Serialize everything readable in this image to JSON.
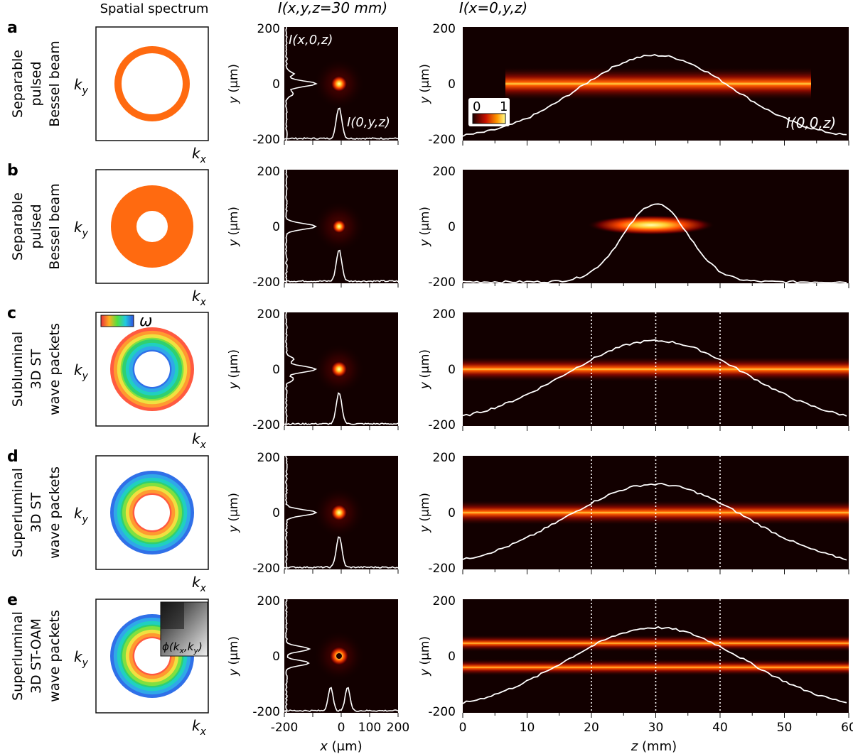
{
  "headers": {
    "spectrum": "Spatial spectrum",
    "transverse": "I(x,y,z=30 mm)",
    "axial": "I(x=0,y,z)"
  },
  "panels": [
    {
      "letter": "a",
      "label": [
        "Separable",
        "pulsed",
        "Bessel beam"
      ],
      "spectrum": "thin-ring-orange",
      "axial_profile": "bell"
    },
    {
      "letter": "b",
      "label": [
        "Separable",
        "pulsed",
        "Bessel beam"
      ],
      "spectrum": "thick-ring-orange",
      "axial_profile": "narrow"
    },
    {
      "letter": "c",
      "label": [
        "Subluminal",
        "3D ST",
        "wave packets"
      ],
      "spectrum": "rainbow-ring-red-outside",
      "axial_profile": "broad"
    },
    {
      "letter": "d",
      "label": [
        "Superluminal",
        "3D ST",
        "wave packets"
      ],
      "spectrum": "rainbow-ring-red-inside",
      "axial_profile": "broad"
    },
    {
      "letter": "e",
      "label": [
        "Superluminal",
        "3D ST-OAM",
        "wave packets"
      ],
      "spectrum": "rainbow-ring-red-inside-oam",
      "axial_profile": "broad"
    }
  ],
  "spectrum_axes": {
    "kx": "k",
    "kx_sub": "x",
    "ky": "k",
    "ky_sub": "y"
  },
  "omega_label": "ω",
  "phase_label": "ϕ(k",
  "phase_label_x": "x",
  "phase_label_mid": ",k",
  "phase_label_y": "y",
  "phase_label_end": ")",
  "transverse_axis": {
    "ylabel_var": "y",
    "ylabel_unit": " (μm)",
    "xlabel_var": "x",
    "xlabel_unit": " (μm)",
    "yticks": [
      "200",
      "0",
      "-200"
    ],
    "xticks": [
      "-200",
      "0",
      "100",
      "200"
    ],
    "xtick_values": [
      -200,
      0,
      100,
      200
    ]
  },
  "axial_axis": {
    "ylabel_var": "y",
    "ylabel_unit": " (μm)",
    "xlabel_var": "z",
    "xlabel_unit": " (mm)",
    "yticks": [
      "200",
      "0",
      "-200"
    ],
    "xticks": [
      "0",
      "10",
      "20",
      "30",
      "40",
      "50",
      "60"
    ],
    "xtick_values": [
      0,
      10,
      20,
      30,
      40,
      50,
      60
    ]
  },
  "annotations": {
    "ix0z": "I(x,0,z)",
    "i0yz": "I(0,y,z)",
    "i00z": "I(0,0,z)",
    "colorbar_min": "0",
    "colorbar_max": "1"
  },
  "colors": {
    "orange": "#ff6a10",
    "curve": "#ffffff",
    "background": "#120000"
  }
}
